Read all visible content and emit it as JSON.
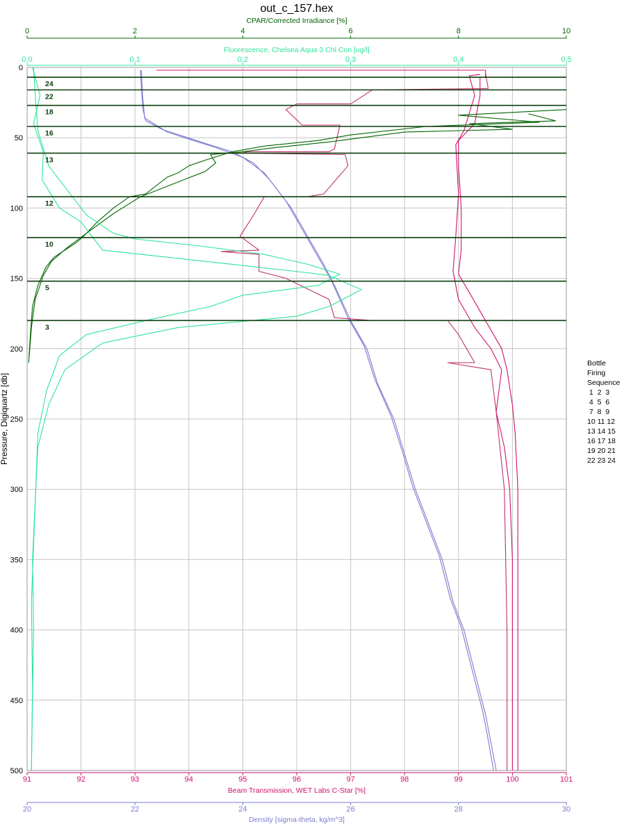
{
  "chart_data": {
    "type": "line",
    "title": "out_c_157.hex",
    "y_axis": {
      "label": "Pressure, Digiquartz [db]",
      "range": [
        0,
        500
      ],
      "ticks": [
        0,
        50,
        100,
        150,
        200,
        250,
        300,
        350,
        400,
        450,
        500
      ],
      "inverted": true,
      "color": "#000000"
    },
    "x_axes": [
      {
        "id": "cpar",
        "position": "top-outer",
        "label": "CPAR/Corrected Irradiance [%]",
        "range": [
          0,
          10
        ],
        "ticks": [
          "0",
          "2",
          "4",
          "6",
          "8",
          "10"
        ],
        "color": "#006400"
      },
      {
        "id": "fluor",
        "position": "top-inner",
        "label": "Fluorescence, Chelsea Aqua 3 Chl Con [ug/l]",
        "range": [
          0,
          0.5
        ],
        "ticks": [
          "0,0",
          "0,1",
          "0,2",
          "0,3",
          "0,4",
          "0,5"
        ],
        "color": "#2ee39a"
      },
      {
        "id": "trans",
        "position": "bottom-inner",
        "label": "Beam Transmission, WET Labs C-Star [%]",
        "range": [
          91,
          101
        ],
        "ticks": [
          "91",
          "92",
          "93",
          "94",
          "95",
          "96",
          "97",
          "98",
          "99",
          "100",
          "101"
        ],
        "color": "#d0106f"
      },
      {
        "id": "dens",
        "position": "bottom-outer",
        "label": "Density [sigma-theta, kg/m^3]",
        "range": [
          20,
          30
        ],
        "ticks": [
          "20",
          "22",
          "24",
          "26",
          "28",
          "30"
        ],
        "color": "#7b7bd0"
      }
    ],
    "grid": true,
    "series": [
      {
        "axis": "dens",
        "color": "#7b7bd0",
        "points": [
          [
            22.1,
            2
          ],
          [
            22.12,
            15
          ],
          [
            22.15,
            30
          ],
          [
            22.2,
            38
          ],
          [
            22.5,
            44
          ],
          [
            22.9,
            49
          ],
          [
            23.3,
            54
          ],
          [
            23.8,
            60
          ],
          [
            24.2,
            68
          ],
          [
            24.5,
            80
          ],
          [
            24.9,
            100
          ],
          [
            25.2,
            120
          ],
          [
            25.5,
            140
          ],
          [
            25.7,
            155
          ],
          [
            26.0,
            180
          ],
          [
            26.3,
            200
          ],
          [
            26.5,
            225
          ],
          [
            26.8,
            250
          ],
          [
            27.0,
            275
          ],
          [
            27.2,
            300
          ],
          [
            27.5,
            330
          ],
          [
            27.7,
            350
          ],
          [
            27.9,
            380
          ],
          [
            28.1,
            400
          ],
          [
            28.3,
            430
          ],
          [
            28.5,
            460
          ],
          [
            28.6,
            480
          ],
          [
            28.7,
            500
          ]
        ]
      },
      {
        "axis": "dens",
        "color": "#7b7bd0",
        "points": [
          [
            22.12,
            2
          ],
          [
            22.14,
            20
          ],
          [
            22.18,
            36
          ],
          [
            22.6,
            46
          ],
          [
            23.0,
            51
          ],
          [
            23.5,
            57
          ],
          [
            24.0,
            64
          ],
          [
            24.4,
            75
          ],
          [
            24.8,
            95
          ],
          [
            25.1,
            115
          ],
          [
            25.4,
            135
          ],
          [
            25.65,
            152
          ],
          [
            25.95,
            178
          ],
          [
            26.25,
            198
          ],
          [
            26.45,
            222
          ],
          [
            26.75,
            248
          ],
          [
            26.95,
            272
          ],
          [
            27.15,
            298
          ],
          [
            27.45,
            328
          ],
          [
            27.65,
            348
          ],
          [
            27.85,
            378
          ],
          [
            28.05,
            398
          ],
          [
            28.25,
            428
          ],
          [
            28.45,
            458
          ],
          [
            28.55,
            478
          ],
          [
            28.65,
            500
          ]
        ]
      },
      {
        "axis": "trans",
        "color": "#d0106f",
        "points": [
          [
            93.4,
            2
          ],
          [
            99.5,
            2
          ],
          [
            99.5,
            5
          ],
          [
            99.5,
            7
          ],
          [
            99.4,
            7
          ],
          [
            99.4,
            20
          ],
          [
            99.3,
            40
          ],
          [
            99.0,
            52
          ],
          [
            99.0,
            70
          ],
          [
            99.05,
            100
          ],
          [
            99.05,
            130
          ],
          [
            99.0,
            147
          ],
          [
            99.2,
            160
          ],
          [
            99.5,
            180
          ],
          [
            99.8,
            200
          ],
          [
            99.9,
            215
          ],
          [
            100.0,
            240
          ],
          [
            100.05,
            260
          ],
          [
            100.1,
            300
          ],
          [
            100.1,
            350
          ],
          [
            100.1,
            400
          ],
          [
            100.1,
            450
          ],
          [
            100.1,
            500
          ]
        ]
      },
      {
        "axis": "trans",
        "color": "#d0106f",
        "points": [
          [
            99.4,
            5
          ],
          [
            99.2,
            6
          ],
          [
            99.3,
            20
          ],
          [
            99.1,
            45
          ],
          [
            98.95,
            55
          ],
          [
            99.0,
            90
          ],
          [
            98.95,
            120
          ],
          [
            98.9,
            145
          ],
          [
            99.0,
            165
          ],
          [
            99.3,
            185
          ],
          [
            99.6,
            200
          ],
          [
            99.8,
            215
          ],
          [
            99.7,
            245
          ],
          [
            99.85,
            270
          ],
          [
            99.95,
            300
          ],
          [
            100.0,
            350
          ],
          [
            100.0,
            400
          ],
          [
            100.0,
            450
          ],
          [
            100.0,
            500
          ]
        ]
      },
      {
        "axis": "trans",
        "color": "#c0306a",
        "points": [
          [
            99.5,
            4
          ],
          [
            99.55,
            15
          ],
          [
            97.4,
            16
          ],
          [
            97.0,
            26
          ],
          [
            96.0,
            26
          ],
          [
            95.8,
            30
          ],
          [
            96.1,
            41
          ],
          [
            96.8,
            41
          ],
          [
            96.7,
            58
          ],
          [
            96.6,
            60
          ],
          [
            95.0,
            60
          ],
          [
            95.1,
            61
          ],
          [
            96.9,
            62
          ],
          [
            96.95,
            70
          ],
          [
            96.5,
            90
          ],
          [
            96.2,
            92
          ],
          [
            95.4,
            92
          ],
          [
            95.2,
            105
          ],
          [
            94.95,
            120
          ],
          [
            95.3,
            130
          ],
          [
            94.6,
            131
          ],
          [
            95.3,
            133
          ],
          [
            95.3,
            140
          ],
          [
            95.3,
            145
          ],
          [
            95.8,
            150
          ],
          [
            96.6,
            165
          ],
          [
            96.7,
            178
          ],
          [
            97.4,
            180
          ],
          [
            98.8,
            180
          ],
          [
            99.0,
            190
          ],
          [
            99.3,
            210
          ],
          [
            98.8,
            210
          ],
          [
            99.6,
            215
          ],
          [
            99.7,
            245
          ],
          [
            99.85,
            300
          ],
          [
            99.9,
            400
          ],
          [
            99.9,
            500
          ]
        ]
      },
      {
        "axis": "cpar",
        "color": "#006400",
        "points": [
          [
            10,
            30
          ],
          [
            8.0,
            34
          ],
          [
            9.5,
            39
          ],
          [
            7.4,
            42
          ],
          [
            6.0,
            48
          ],
          [
            5.4,
            52
          ],
          [
            4.4,
            56
          ],
          [
            3.8,
            60
          ],
          [
            3.3,
            66
          ],
          [
            3.0,
            70
          ],
          [
            2.8,
            75
          ],
          [
            2.6,
            78
          ],
          [
            2.4,
            84
          ],
          [
            2.2,
            90
          ],
          [
            1.9,
            92
          ],
          [
            1.6,
            100
          ],
          [
            1.3,
            110
          ],
          [
            1.05,
            120
          ],
          [
            0.9,
            125
          ],
          [
            0.7,
            130
          ],
          [
            0.5,
            135
          ],
          [
            0.35,
            142
          ],
          [
            0.2,
            155
          ],
          [
            0.1,
            170
          ],
          [
            0.06,
            190
          ],
          [
            0.03,
            210
          ]
        ]
      },
      {
        "axis": "cpar",
        "color": "#006400",
        "points": [
          [
            9.3,
            33
          ],
          [
            9.8,
            38
          ],
          [
            8.2,
            40
          ],
          [
            9.0,
            44
          ],
          [
            7.0,
            46
          ],
          [
            5.6,
            53
          ],
          [
            4.6,
            57
          ],
          [
            4.0,
            60
          ],
          [
            3.4,
            62
          ],
          [
            3.5,
            68
          ],
          [
            3.3,
            74
          ],
          [
            2.9,
            80
          ],
          [
            2.5,
            86
          ],
          [
            2.1,
            92
          ],
          [
            1.6,
            104
          ],
          [
            1.1,
            118
          ],
          [
            0.75,
            128
          ],
          [
            0.45,
            138
          ],
          [
            0.3,
            148
          ],
          [
            0.15,
            165
          ],
          [
            0.08,
            185
          ],
          [
            0.04,
            205
          ]
        ]
      },
      {
        "axis": "fluor",
        "color": "#2ee39a",
        "points": [
          [
            0.005,
            0
          ],
          [
            0.012,
            20
          ],
          [
            0.006,
            40
          ],
          [
            0.015,
            60
          ],
          [
            0.014,
            80
          ],
          [
            0.03,
            100
          ],
          [
            0.05,
            110
          ],
          [
            0.065,
            125
          ],
          [
            0.07,
            130
          ],
          [
            0.13,
            135
          ],
          [
            0.19,
            140
          ],
          [
            0.26,
            146
          ],
          [
            0.28,
            148
          ],
          [
            0.31,
            158
          ],
          [
            0.28,
            170
          ],
          [
            0.25,
            177
          ],
          [
            0.14,
            185
          ],
          [
            0.07,
            196
          ],
          [
            0.035,
            215
          ],
          [
            0.02,
            240
          ],
          [
            0.01,
            270
          ],
          [
            0.008,
            300
          ],
          [
            0.005,
            350
          ],
          [
            0.006,
            400
          ],
          [
            0.005,
            450
          ],
          [
            0.004,
            500
          ]
        ]
      },
      {
        "axis": "fluor",
        "color": "#2ee39a",
        "points": [
          [
            0.006,
            0
          ],
          [
            0.008,
            25
          ],
          [
            0.01,
            45
          ],
          [
            0.02,
            70
          ],
          [
            0.04,
            90
          ],
          [
            0.055,
            105
          ],
          [
            0.08,
            118
          ],
          [
            0.1,
            122
          ],
          [
            0.16,
            127
          ],
          [
            0.22,
            133
          ],
          [
            0.26,
            140
          ],
          [
            0.29,
            147
          ],
          [
            0.27,
            155
          ],
          [
            0.2,
            162
          ],
          [
            0.17,
            170
          ],
          [
            0.11,
            180
          ],
          [
            0.055,
            190
          ],
          [
            0.03,
            205
          ],
          [
            0.018,
            230
          ],
          [
            0.01,
            260
          ],
          [
            0.007,
            320
          ],
          [
            0.004,
            380
          ],
          [
            0.005,
            440
          ],
          [
            0.004,
            500
          ]
        ]
      }
    ],
    "bottle_stops": [
      {
        "p": 7,
        "label": "24"
      },
      {
        "p": 16,
        "label": "22"
      },
      {
        "p": 27,
        "label": "18"
      },
      {
        "p": 42,
        "label": "16"
      },
      {
        "p": 61,
        "label": "13"
      },
      {
        "p": 92,
        "label": "12"
      },
      {
        "p": 121,
        "label": "10"
      },
      {
        "p": 152,
        "label": "5"
      },
      {
        "p": 180,
        "label": "3"
      }
    ]
  },
  "legend": {
    "lines": [
      "Bottle",
      "Firing",
      "Sequence",
      " 1  2  3",
      " 4  5  6",
      " 7  8  9",
      "10 11 12",
      "13 14 15",
      "16 17 18",
      "19 20 21",
      "22 23 24"
    ]
  }
}
